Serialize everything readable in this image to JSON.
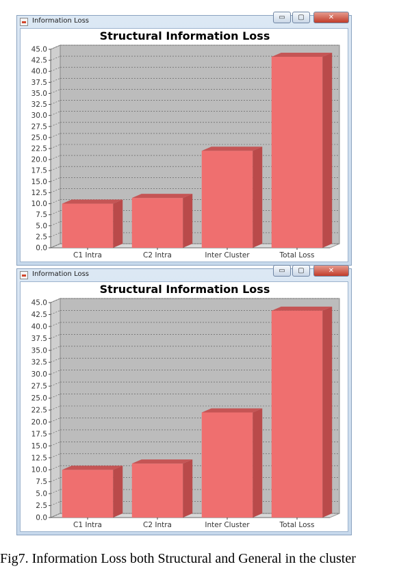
{
  "caption": "Fig7. Information Loss both Structural and General in the cluster",
  "colors": {
    "bar_front": "#ef6f6f",
    "bar_side": "#b94a4a",
    "bar_top": "#c55555",
    "plot_bg": "#bcbcbc",
    "gridline": "#555555"
  },
  "windows": [
    {
      "title": "Information Loss",
      "controls": {
        "minimize": "▭",
        "maximize": "▢",
        "close": "✕"
      },
      "icons": {
        "app": "java-app-icon",
        "minimize": "minimize-icon",
        "maximize": "maximize-icon",
        "close": "close-icon"
      }
    },
    {
      "title": "Information Loss",
      "controls": {
        "minimize": "▭",
        "maximize": "▢",
        "close": "✕"
      },
      "icons": {
        "app": "java-app-icon",
        "minimize": "minimize-icon",
        "maximize": "maximize-icon",
        "close": "close-icon"
      }
    }
  ],
  "chart_data": [
    {
      "type": "bar",
      "title": "Structural Information Loss",
      "categories": [
        "C1 Intra",
        "C2 Intra",
        "Inter Cluster",
        "Total Loss"
      ],
      "values": [
        10,
        11.3,
        22,
        43.3
      ],
      "ylim": [
        0,
        45
      ],
      "yticks": [
        "0.0",
        "2.5",
        "5.0",
        "7.5",
        "10.0",
        "12.5",
        "15.0",
        "17.5",
        "20.0",
        "22.5",
        "25.0",
        "27.5",
        "30.0",
        "32.5",
        "35.0",
        "37.5",
        "40.0",
        "42.5",
        "45.0"
      ],
      "grid": true,
      "legend": "none",
      "style": "3d"
    },
    {
      "type": "bar",
      "title": "Structural Information Loss",
      "categories": [
        "C1 Intra",
        "C2 Intra",
        "Inter Cluster",
        "Total Loss"
      ],
      "values": [
        10,
        11.3,
        22,
        43.3
      ],
      "ylim": [
        0,
        45
      ],
      "yticks": [
        "0.0",
        "2.5",
        "5.0",
        "7.5",
        "10.0",
        "12.5",
        "15.0",
        "17.5",
        "20.0",
        "22.5",
        "25.0",
        "27.5",
        "30.0",
        "32.5",
        "35.0",
        "37.5",
        "40.0",
        "42.5",
        "45.0"
      ],
      "grid": true,
      "legend": "none",
      "style": "3d"
    }
  ]
}
